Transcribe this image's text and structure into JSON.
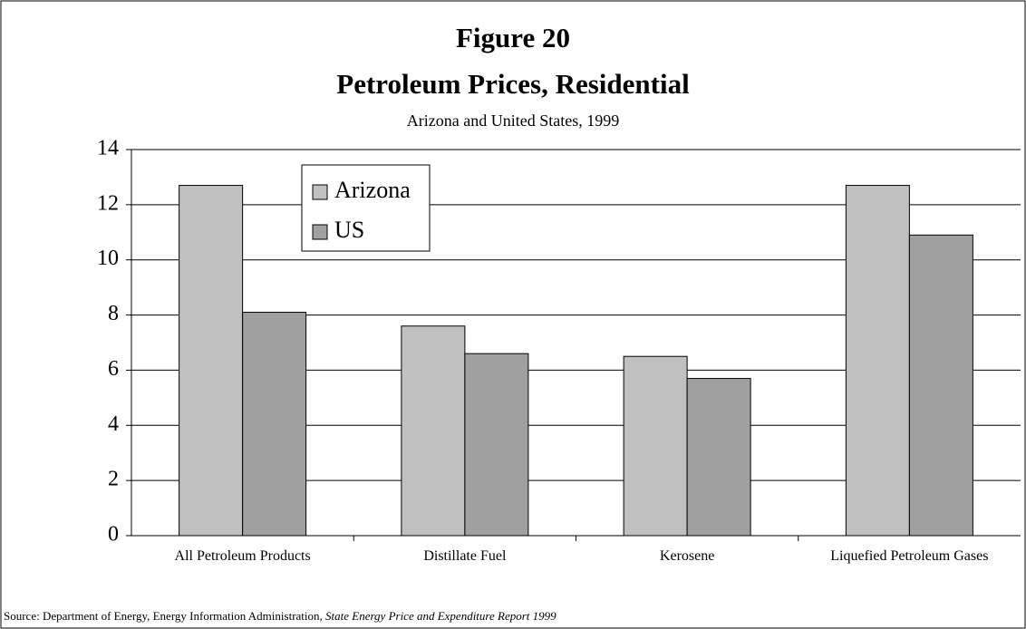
{
  "chart_data": {
    "type": "bar",
    "title": "Figure 20",
    "subtitle": "Petroleum Prices, Residential",
    "subtitle2": "Arizona and United States, 1999",
    "categories": [
      "All Petroleum Products",
      "Distillate Fuel",
      "Kerosene",
      "Liquefied Petroleum Gases"
    ],
    "series": [
      {
        "name": "Arizona",
        "color": "#c0c0c0",
        "values": [
          12.7,
          7.6,
          6.5,
          12.7
        ]
      },
      {
        "name": "US",
        "color": "#a0a0a0",
        "values": [
          8.1,
          6.6,
          5.7,
          10.9
        ]
      }
    ],
    "ylim": [
      0,
      14
    ],
    "yticks": [
      0,
      2,
      4,
      6,
      8,
      10,
      12,
      14
    ],
    "grid": true,
    "source": "Source:  Department of Energy, Energy Information Administration,",
    "source_title": "State Energy Price and Expenditure Report 1999"
  }
}
